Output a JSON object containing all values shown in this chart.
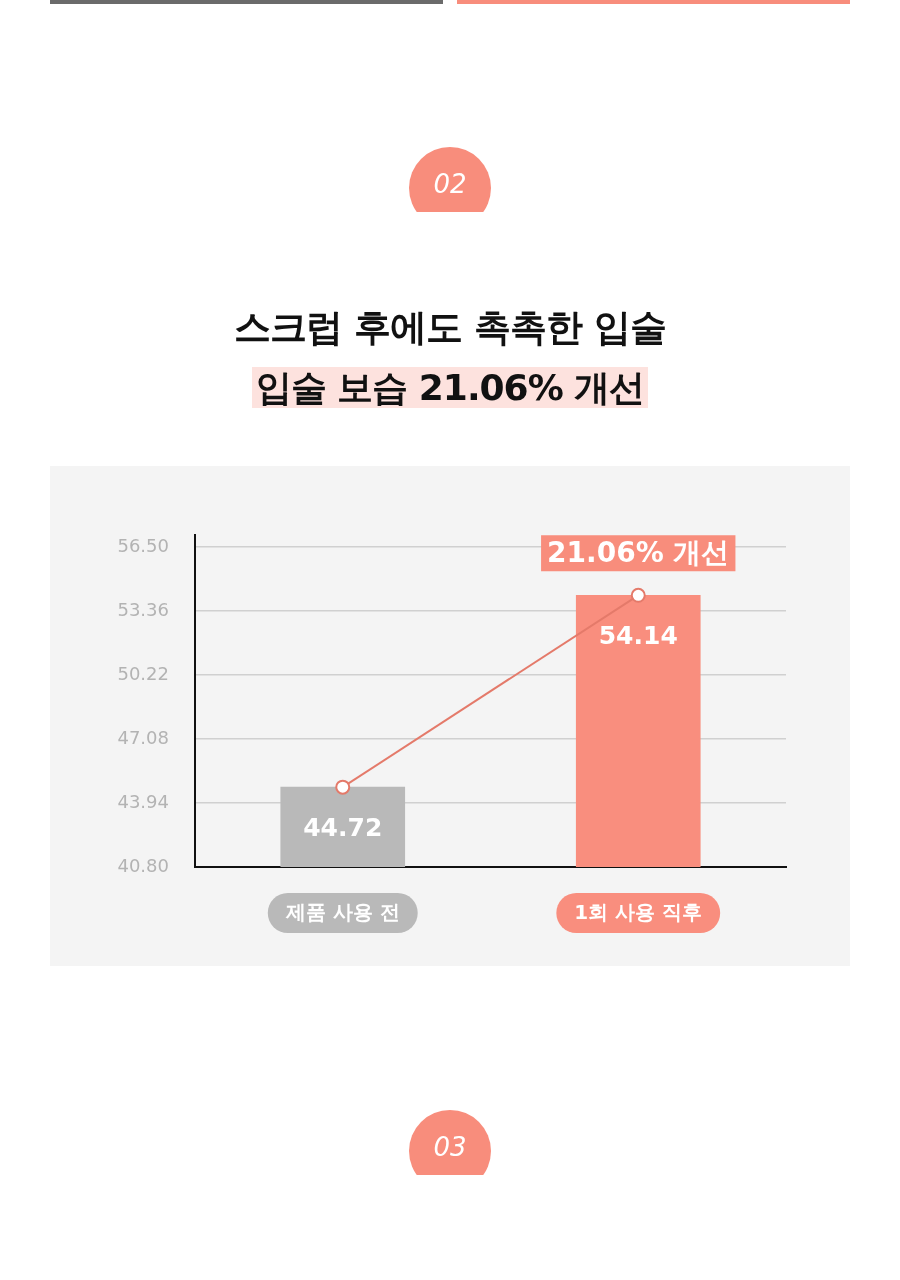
{
  "chart_data": {
    "type": "bar",
    "title": "스크럽 후에도 촉촉한 입술",
    "subtitle": "입술 보습 21.06% 개선",
    "categories": [
      "제품 사용 전",
      "1회 사용 직후"
    ],
    "series": [
      {
        "colors": [
          "#b9b9b9",
          "#f98e7e"
        ],
        "values": [
          44.72,
          54.14
        ],
        "value_labels": [
          "44.72",
          "54.14"
        ]
      },
      {
        "type": "line",
        "color": "#e47a6a",
        "marker": "circle",
        "values": [
          44.72,
          54.14
        ]
      }
    ],
    "ylim": [
      40.8,
      57.1
    ],
    "yticks": [
      {
        "value": 40.8,
        "label": "40.80"
      },
      43.94,
      47.08,
      50.22,
      53.36,
      {
        "value": 56.5,
        "label": "56.50"
      }
    ],
    "grid": "y",
    "annotations": [
      "02",
      {
        "text": "21.06% 개선",
        "x": "1회 사용 직후",
        "y": 54.14
      },
      "03"
    ]
  }
}
